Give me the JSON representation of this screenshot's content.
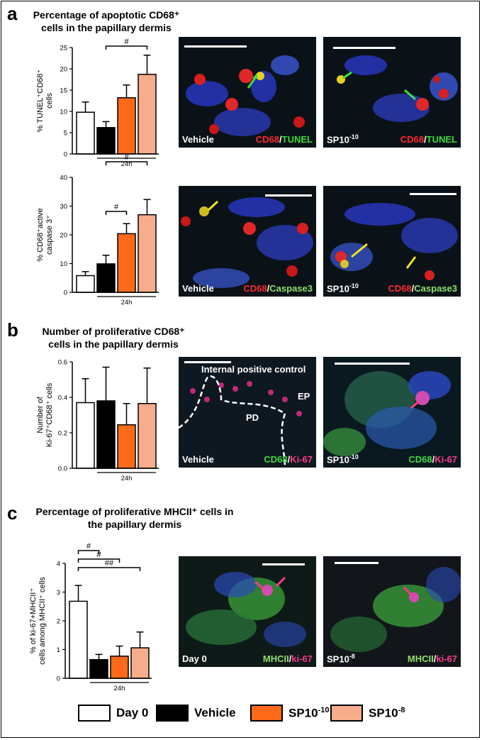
{
  "colors": {
    "day0": "#ffffff",
    "vehicle": "#000000",
    "sp10": "#ff6a1a",
    "sp8": "#f7ad8c",
    "arrow_green": "#3fe03f",
    "arrow_yellow": "#f2e21e",
    "arrow_pink": "#ff3a8a"
  },
  "panels": {
    "a": {
      "label": "a",
      "title_line1": "Percentage of apoptotic CD68⁺",
      "title_line2": "cells in the papillary dermis"
    },
    "b": {
      "label": "b",
      "title_line1": "Number of proliferative CD68⁺",
      "title_line2": "cells in the papillary dermis"
    },
    "c": {
      "label": "c",
      "title_line1": "Percentage of proliferative MHCII⁺ cells in",
      "title_line2": "the papillary dermis"
    }
  },
  "chart_data": [
    {
      "type": "bar",
      "categories": [
        "Day 0",
        "Vehicle",
        "SP10⁻¹⁰",
        "SP10⁻⁸"
      ],
      "values": [
        9.8,
        6.2,
        13.2,
        18.7
      ],
      "errors": [
        2.4,
        1.4,
        3.0,
        4.5
      ],
      "ylabel_line1": "% TUNEL⁺CD68⁺",
      "ylabel_line2": "cells",
      "ylim": [
        0,
        25
      ],
      "yticks": [
        "0",
        "5",
        "10",
        "15",
        "20",
        "25"
      ],
      "group_label": "24h",
      "significance": [
        {
          "from": 1,
          "to": 3,
          "label": "#"
        }
      ]
    },
    {
      "type": "bar",
      "categories": [
        "Day 0",
        "Vehicle",
        "SP10⁻¹⁰",
        "SP10⁻⁸"
      ],
      "values": [
        5.8,
        9.9,
        20.4,
        27.0
      ],
      "errors": [
        1.4,
        3.0,
        3.5,
        5.3
      ],
      "ylabel_line1": "% CD68⁺active",
      "ylabel_line2": "caspase 3⁺",
      "ylim": [
        0,
        40
      ],
      "yticks": [
        "0",
        "10",
        "20",
        "30",
        "40"
      ],
      "group_label": "24h",
      "significance": [
        {
          "from": 1,
          "to": 3,
          "label": "#"
        },
        {
          "from": 1,
          "to": 2,
          "label": "#"
        }
      ]
    },
    {
      "type": "bar",
      "categories": [
        "Day 0",
        "Vehicle",
        "SP10⁻¹⁰",
        "SP10⁻⁸"
      ],
      "values": [
        0.37,
        0.38,
        0.245,
        0.365
      ],
      "errors": [
        0.135,
        0.19,
        0.12,
        0.2
      ],
      "ylabel_line1": "Number of",
      "ylabel_line2": "Ki-67⁺CD68⁺ cells",
      "ylim": [
        0,
        0.6
      ],
      "yticks": [
        "0.0",
        "0.2",
        "0.4",
        "0.6"
      ],
      "group_label": "24h",
      "significance": []
    },
    {
      "type": "bar",
      "categories": [
        "Day 0",
        "Vehicle",
        "SP10⁻¹⁰",
        "SP10⁻⁸"
      ],
      "values": [
        2.68,
        0.65,
        0.77,
        1.06
      ],
      "errors": [
        0.55,
        0.18,
        0.35,
        0.55
      ],
      "ylabel_line1": "% of ki-67+MHCII⁺",
      "ylabel_line2": "cells among MHCII⁺ cells",
      "ylim": [
        0,
        4
      ],
      "yticks": [
        "0",
        "1",
        "2",
        "3",
        "4"
      ],
      "group_label": "24h",
      "significance": [
        {
          "from": 0,
          "to": 1,
          "label": "#"
        },
        {
          "from": 0,
          "to": 2,
          "label": "#"
        },
        {
          "from": 0,
          "to": 3,
          "label": "##"
        }
      ]
    }
  ],
  "images": {
    "a_tunel_vehicle": {
      "left": "Vehicle",
      "right_a": "CD68",
      "sep": "/",
      "right_b": "TUNEL"
    },
    "a_tunel_sp": {
      "left_base": "SP10",
      "left_sup": "-10",
      "right_a": "CD68",
      "sep": "/",
      "right_b": "TUNEL"
    },
    "a_casp_vehicle": {
      "left": "Vehicle",
      "right_a": "CD68",
      "sep": "/",
      "right_b": "Caspase3"
    },
    "a_casp_sp": {
      "left_base": "SP10",
      "left_sup": "-10",
      "right_a": "CD68",
      "sep": "/",
      "right_b": "Caspase3"
    },
    "b_vehicle": {
      "left": "Vehicle",
      "right_a": "CD68",
      "sep": "/",
      "right_b": "Ki-67",
      "internal": "Internal positive control",
      "ep": "EP",
      "pd": "PD"
    },
    "b_sp": {
      "left_base": "SP10",
      "left_sup": "-10",
      "right_a": "CD68",
      "sep": "/",
      "right_b": "Ki-67"
    },
    "c_day0": {
      "left": "Day 0",
      "right_a": "MHCII",
      "sep": "/",
      "right_b": "ki-67"
    },
    "c_sp": {
      "left_base": "SP10",
      "left_sup": "-8",
      "right_a": "MHCII",
      "sep": "/",
      "right_b": "ki-67"
    }
  },
  "legend": [
    {
      "label_base": "Day 0",
      "label_sup": "",
      "color": "#ffffff"
    },
    {
      "label_base": "Vehicle",
      "label_sup": "",
      "color": "#000000"
    },
    {
      "label_base": "SP10",
      "label_sup": "-10",
      "color": "#ff6a1a"
    },
    {
      "label_base": "SP10",
      "label_sup": "-8",
      "color": "#f7ad8c"
    }
  ]
}
